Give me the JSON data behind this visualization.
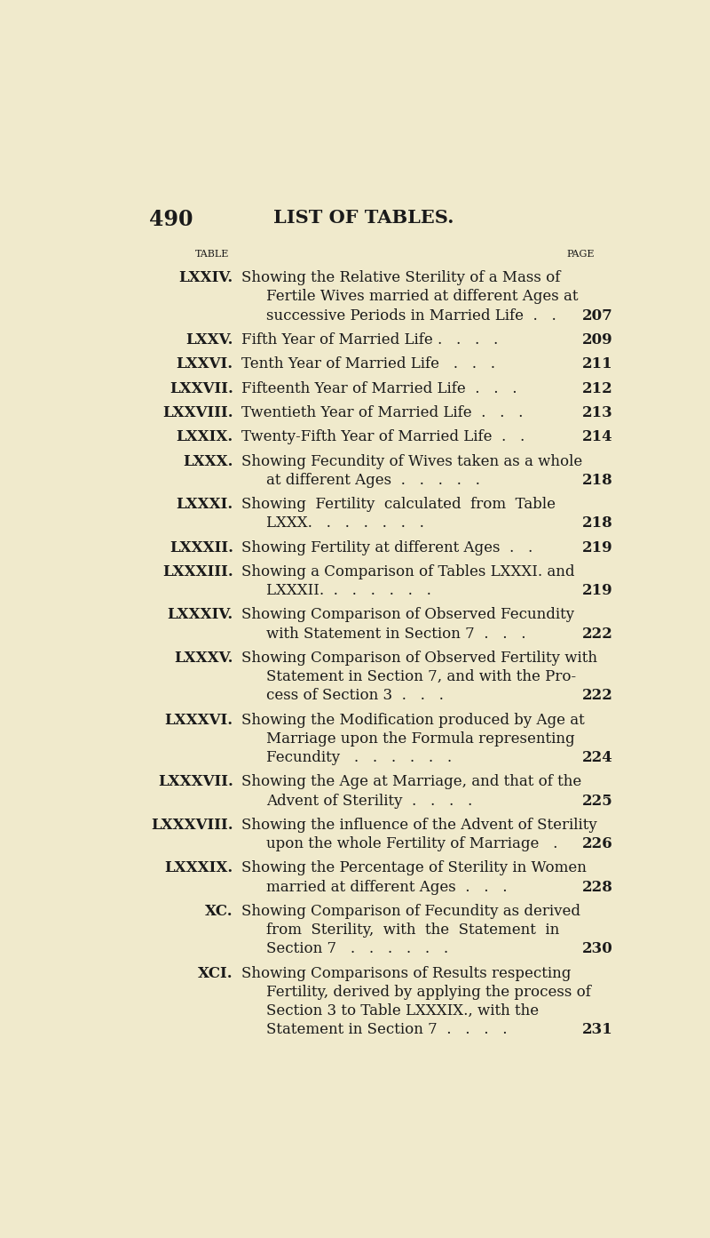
{
  "page_number": "490",
  "page_title": "LIST OF TABLES.",
  "col1_header": "Table",
  "col2_header": "Page",
  "background_color": "#f0eacc",
  "text_color": "#1a1a1a",
  "entries": [
    {
      "number": "LXXIV.",
      "lines": [
        "Showing the Relative Sterility of a Mass of",
        "Fertile Wives married at different Ages at",
        "successive Periods in Married Life  .   ."
      ],
      "page": "207",
      "page_on_line": 2
    },
    {
      "number": "LXXV.",
      "lines": [
        "Fifth Year of Married Life .   .   .   ."
      ],
      "page": "209",
      "page_on_line": 0
    },
    {
      "number": "LXXVI.",
      "lines": [
        "Tenth Year of Married Life   .   .   ."
      ],
      "page": "211",
      "page_on_line": 0
    },
    {
      "number": "LXXVII.",
      "lines": [
        "Fifteenth Year of Married Life  .   .   ."
      ],
      "page": "212",
      "page_on_line": 0
    },
    {
      "number": "LXXVIII.",
      "lines": [
        "Twentieth Year of Married Life  .   .   ."
      ],
      "page": "213",
      "page_on_line": 0
    },
    {
      "number": "LXXIX.",
      "lines": [
        "Twenty-Fifth Year of Married Life  .   ."
      ],
      "page": "214",
      "page_on_line": 0
    },
    {
      "number": "LXXX.",
      "lines": [
        "Showing Fecundity of Wives taken as a whole",
        "at different Ages  .   .   .   .   ."
      ],
      "page": "218",
      "page_on_line": 1
    },
    {
      "number": "LXXXI.",
      "lines": [
        "Showing  Fertility  calculated  from  Table",
        "LXXX.   .   .   .   .   .   ."
      ],
      "page": "218",
      "page_on_line": 1
    },
    {
      "number": "LXXXII.",
      "lines": [
        "Showing Fertility at different Ages  .   ."
      ],
      "page": "219",
      "page_on_line": 0
    },
    {
      "number": "LXXXIII.",
      "lines": [
        "Showing a Comparison of Tables LXXXI. and",
        "LXXXII.  .   .   .   .   .   ."
      ],
      "page": "219",
      "page_on_line": 1
    },
    {
      "number": "LXXXIV.",
      "lines": [
        "Showing Comparison of Observed Fecundity",
        "with Statement in Section 7  .   .   ."
      ],
      "page": "222",
      "page_on_line": 1
    },
    {
      "number": "LXXXV.",
      "lines": [
        "Showing Comparison of Observed Fertility with",
        "Statement in Section 7, and with the Pro-",
        "cess of Section 3  .   .   ."
      ],
      "page": "222",
      "page_on_line": 2
    },
    {
      "number": "LXXXVI.",
      "lines": [
        "Showing the Modification produced by Age at",
        "Marriage upon the Formula representing",
        "Fecundity   .   .   .   .   .   ."
      ],
      "page": "224",
      "page_on_line": 2
    },
    {
      "number": "LXXXVII.",
      "lines": [
        "Showing the Age at Marriage, and that of the",
        "Advent of Sterility  .   .   .   ."
      ],
      "page": "225",
      "page_on_line": 1
    },
    {
      "number": "LXXXVIII.",
      "lines": [
        "Showing the influence of the Advent of Sterility",
        "upon the whole Fertility of Marriage   ."
      ],
      "page": "226",
      "page_on_line": 1
    },
    {
      "number": "LXXXIX.",
      "lines": [
        "Showing the Percentage of Sterility in Women",
        "married at different Ages  .   .   ."
      ],
      "page": "228",
      "page_on_line": 1
    },
    {
      "number": "XC.",
      "lines": [
        "Showing Comparison of Fecundity as derived",
        "from  Sterility,  with  the  Statement  in",
        "Section 7   .   .   .   .   .   ."
      ],
      "page": "230",
      "page_on_line": 2
    },
    {
      "number": "XCI.",
      "lines": [
        "Showing Comparisons of Results respecting",
        "Fertility, derived by applying the process of",
        "Section 3 to Table LXXXIX., with the",
        "Statement in Section 7  .   .   .   ."
      ],
      "page": "231",
      "page_on_line": 3
    }
  ]
}
